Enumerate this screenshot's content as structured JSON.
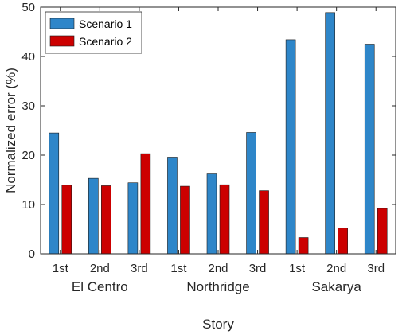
{
  "chart_data": {
    "type": "bar",
    "xlabel": "Story",
    "ylabel": "Normalized error (%)",
    "ylim": [
      0,
      50
    ],
    "yticks": [
      0,
      10,
      20,
      30,
      40,
      50
    ],
    "grid": false,
    "legend_position": "top-left",
    "categories": [
      "1st",
      "2nd",
      "3rd",
      "1st",
      "2nd",
      "3rd",
      "1st",
      "2nd",
      "3rd"
    ],
    "groups": [
      {
        "label": "El Centro",
        "span": [
          0,
          2
        ]
      },
      {
        "label": "Northridge",
        "span": [
          3,
          5
        ]
      },
      {
        "label": "Sakarya",
        "span": [
          6,
          8
        ]
      }
    ],
    "series": [
      {
        "name": "Scenario 1",
        "color": "#2e86c9",
        "values": [
          24.5,
          15.3,
          14.4,
          19.6,
          16.2,
          24.6,
          43.4,
          48.9,
          42.5
        ]
      },
      {
        "name": "Scenario 2",
        "color": "#cc0000",
        "values": [
          13.9,
          13.8,
          20.3,
          13.7,
          14.0,
          12.8,
          3.3,
          5.2,
          9.2
        ]
      }
    ]
  }
}
